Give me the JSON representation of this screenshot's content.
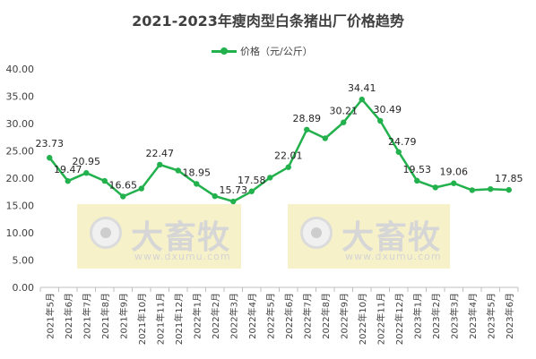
{
  "chart_data": {
    "type": "line",
    "title": "2021-2023年瘦肉型白条猪出厂价格趋势",
    "categories": [
      "2021年5月",
      "2021年6月",
      "2021年7月",
      "2021年8月",
      "2021年9月",
      "2021年10月",
      "2021年11月",
      "2021年12月",
      "2022年1月",
      "2022年2月",
      "2022年3月",
      "2022年4月",
      "2022年5月",
      "2022年6月",
      "2022年7月",
      "2022年8月",
      "2022年9月",
      "2022年10月",
      "2022年11月",
      "2022年12月",
      "2023年1月",
      "2023年2月",
      "2023年3月",
      "2023年4月",
      "2023年5月",
      "2023年6月"
    ],
    "series": [
      {
        "name": "价格（元/公斤）",
        "values": [
          23.73,
          19.47,
          20.95,
          19.5,
          16.65,
          18.1,
          22.47,
          21.4,
          18.95,
          16.7,
          15.73,
          17.58,
          20.1,
          22.01,
          28.89,
          27.3,
          30.21,
          34.41,
          30.49,
          24.79,
          19.53,
          18.3,
          19.06,
          17.8,
          18.0,
          17.85
        ],
        "labels": [
          "23.73",
          "19.47",
          "20.95",
          "",
          "16.65",
          "",
          "22.47",
          "",
          "18.95",
          "",
          "15.73",
          "17.58",
          "",
          "22.01",
          "28.89",
          "",
          "30.21",
          "34.41",
          "30.49",
          "24.79",
          "19.53",
          "",
          "19.06",
          "",
          "",
          "17.85"
        ],
        "color": "#22b14c"
      }
    ],
    "ylim": [
      0,
      40
    ],
    "yticks": [
      "0.00",
      "5.00",
      "10.00",
      "15.00",
      "20.00",
      "25.00",
      "30.00",
      "35.00",
      "40.00"
    ],
    "legend": "top",
    "grid": false
  },
  "watermark": {
    "brand": "大畜牧",
    "url": "www.dxumu.com"
  }
}
